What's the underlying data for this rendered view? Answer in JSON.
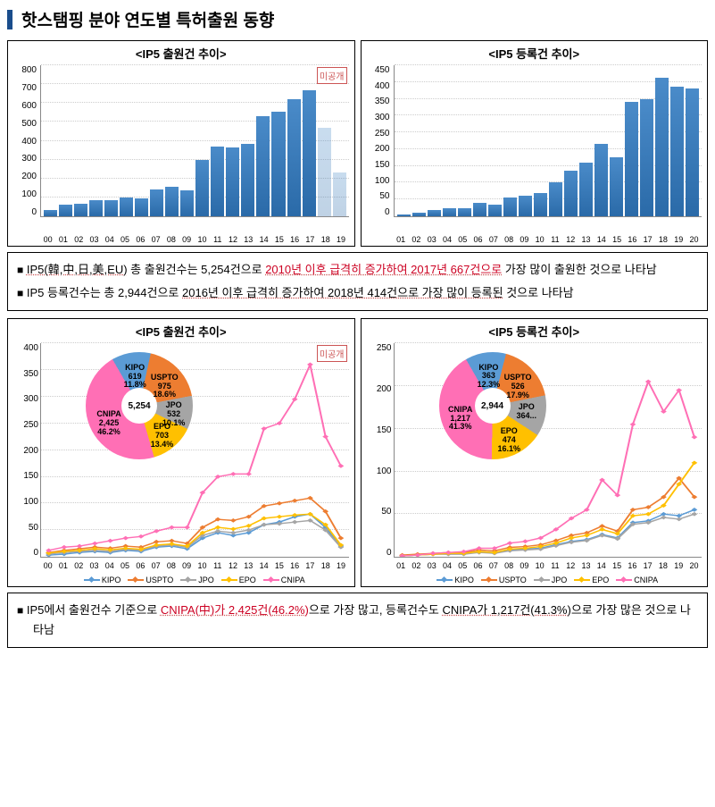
{
  "title": "핫스탬핑 분야 연도별 특허출원 동향",
  "unpublished_label": "미공개",
  "bar1": {
    "title": "<IP5 출원건 추이>",
    "ymax": 800,
    "ytick": 100,
    "categories": [
      "00",
      "01",
      "02",
      "03",
      "04",
      "05",
      "06",
      "07",
      "08",
      "09",
      "10",
      "11",
      "12",
      "13",
      "14",
      "15",
      "16",
      "17",
      "18",
      "19"
    ],
    "values": [
      35,
      60,
      65,
      85,
      85,
      100,
      95,
      140,
      155,
      135,
      300,
      370,
      365,
      385,
      530,
      555,
      620,
      667,
      470,
      230
    ],
    "faded_from": 18,
    "bar_color": "#4a8bc9"
  },
  "bar2": {
    "title": "<IP5 등록건 추이>",
    "ymax": 450,
    "ytick": 50,
    "categories": [
      "01",
      "02",
      "03",
      "04",
      "05",
      "06",
      "07",
      "08",
      "09",
      "10",
      "11",
      "12",
      "13",
      "14",
      "15",
      "16",
      "17",
      "18",
      "19",
      "20"
    ],
    "values": [
      5,
      10,
      20,
      25,
      25,
      40,
      35,
      55,
      60,
      70,
      100,
      135,
      160,
      215,
      175,
      340,
      350,
      414,
      385,
      380
    ],
    "bar_color": "#4a8bc9"
  },
  "txt1": {
    "line1_a": "IP5(韓,中,日,美,EU)",
    "line1_b": " 총 출원건수는 5,254건으로 ",
    "line1_c": "2010년 이후 급격히 증가하여 2017년 667건으로",
    "line1_d": " 가장 많이 출원한 것으로 나타남",
    "line2_a": "IP5 등록건수는 총 2,944건으로 ",
    "line2_b": "2016년 이후 급격히 증가하여 2018년 414건으로 가장 많이 등록된",
    "line2_c": " 것으로 나타남"
  },
  "line1": {
    "title": "<IP5 출원건 추이>",
    "ymax": 400,
    "ytick": 50,
    "categories": [
      "00",
      "01",
      "02",
      "03",
      "04",
      "05",
      "06",
      "07",
      "08",
      "09",
      "10",
      "11",
      "12",
      "13",
      "14",
      "15",
      "16",
      "17",
      "18",
      "19"
    ],
    "series": {
      "KIPO": {
        "color": "#5b9bd5",
        "values": [
          3,
          5,
          8,
          10,
          8,
          12,
          10,
          18,
          20,
          15,
          35,
          45,
          40,
          45,
          60,
          65,
          75,
          80,
          55,
          20
        ]
      },
      "USPTO": {
        "color": "#ed7d31",
        "values": [
          8,
          12,
          15,
          18,
          16,
          20,
          18,
          28,
          30,
          25,
          55,
          70,
          68,
          75,
          95,
          100,
          105,
          110,
          85,
          35
        ]
      },
      "JPO": {
        "color": "#a5a5a5",
        "values": [
          5,
          8,
          10,
          12,
          10,
          14,
          12,
          20,
          22,
          18,
          40,
          48,
          45,
          50,
          60,
          62,
          65,
          68,
          50,
          18
        ]
      },
      "EPO": {
        "color": "#ffc000",
        "values": [
          7,
          10,
          12,
          15,
          13,
          16,
          14,
          22,
          24,
          20,
          45,
          55,
          52,
          58,
          72,
          75,
          78,
          80,
          60,
          22
        ]
      },
      "CNIPA": {
        "color": "#ff6fb5",
        "values": [
          12,
          18,
          20,
          25,
          30,
          35,
          38,
          48,
          55,
          55,
          120,
          150,
          155,
          155,
          240,
          250,
          295,
          360,
          225,
          170
        ]
      }
    },
    "pie": {
      "center": "5,254",
      "slices": [
        {
          "name": "KIPO",
          "value": 619,
          "pct": "11.8%",
          "color": "#5b9bd5"
        },
        {
          "name": "USPTO",
          "value": 975,
          "pct": "18.6%",
          "color": "#ed7d31"
        },
        {
          "name": "JPO",
          "value": 532,
          "pct": "10.1%",
          "color": "#a5a5a5"
        },
        {
          "name": "EPO",
          "value": 703,
          "pct": "13.4%",
          "color": "#ffc000"
        },
        {
          "name": "CNIPA",
          "value": 2425,
          "pct": "46.2%",
          "color": "#ff6fb5"
        }
      ]
    }
  },
  "line2": {
    "title": "<IP5 등록건 추이>",
    "ymax": 250,
    "ytick": 50,
    "categories": [
      "01",
      "02",
      "03",
      "04",
      "05",
      "06",
      "07",
      "08",
      "09",
      "10",
      "11",
      "12",
      "13",
      "14",
      "15",
      "16",
      "17",
      "18",
      "19",
      "20"
    ],
    "series": {
      "KIPO": {
        "color": "#5b9bd5",
        "values": [
          1,
          2,
          3,
          4,
          4,
          6,
          5,
          8,
          9,
          10,
          14,
          18,
          20,
          26,
          22,
          40,
          42,
          50,
          48,
          55
        ]
      },
      "USPTO": {
        "color": "#ed7d31",
        "values": [
          2,
          3,
          4,
          5,
          5,
          8,
          7,
          11,
          12,
          14,
          19,
          25,
          28,
          36,
          30,
          55,
          58,
          70,
          92,
          70
        ]
      },
      "JPO": {
        "color": "#a5a5a5",
        "values": [
          1,
          2,
          3,
          3,
          3,
          5,
          4,
          7,
          8,
          9,
          13,
          17,
          19,
          25,
          21,
          38,
          40,
          46,
          44,
          50
        ]
      },
      "EPO": {
        "color": "#ffc000",
        "values": [
          1,
          2,
          3,
          4,
          4,
          6,
          5,
          9,
          10,
          12,
          16,
          22,
          25,
          32,
          27,
          48,
          50,
          60,
          85,
          110
        ]
      },
      "CNIPA": {
        "color": "#ff6fb5",
        "values": [
          1,
          2,
          4,
          5,
          6,
          10,
          10,
          16,
          18,
          22,
          32,
          45,
          55,
          90,
          72,
          155,
          205,
          170,
          195,
          140
        ]
      }
    },
    "pie": {
      "center": "2,944",
      "slices": [
        {
          "name": "KIPO",
          "value": 363,
          "pct": "12.3%",
          "color": "#5b9bd5"
        },
        {
          "name": "USPTO",
          "value": 526,
          "pct": "17.9%",
          "color": "#ed7d31"
        },
        {
          "name": "JPO",
          "value": 364,
          "pct": "",
          "color": "#a5a5a5"
        },
        {
          "name": "EPO",
          "value": 474,
          "pct": "16.1%",
          "color": "#ffc000"
        },
        {
          "name": "CNIPA",
          "value": 1217,
          "pct": "41.3%",
          "color": "#ff6fb5"
        }
      ]
    }
  },
  "txt2": {
    "line1_a": "IP5에서 출원건수 기준으로 ",
    "line1_b": "CNIPA(中)가 2,425건(46.2%)",
    "line1_c": "으로 가장 많고, 등록건수도 ",
    "line1_d": "CNIPA가 1,217건(41.3%)",
    "line1_e": "으로 가장 많은 것으로 나타남"
  },
  "legend_order": [
    "KIPO",
    "USPTO",
    "JPO",
    "EPO",
    "CNIPA"
  ]
}
